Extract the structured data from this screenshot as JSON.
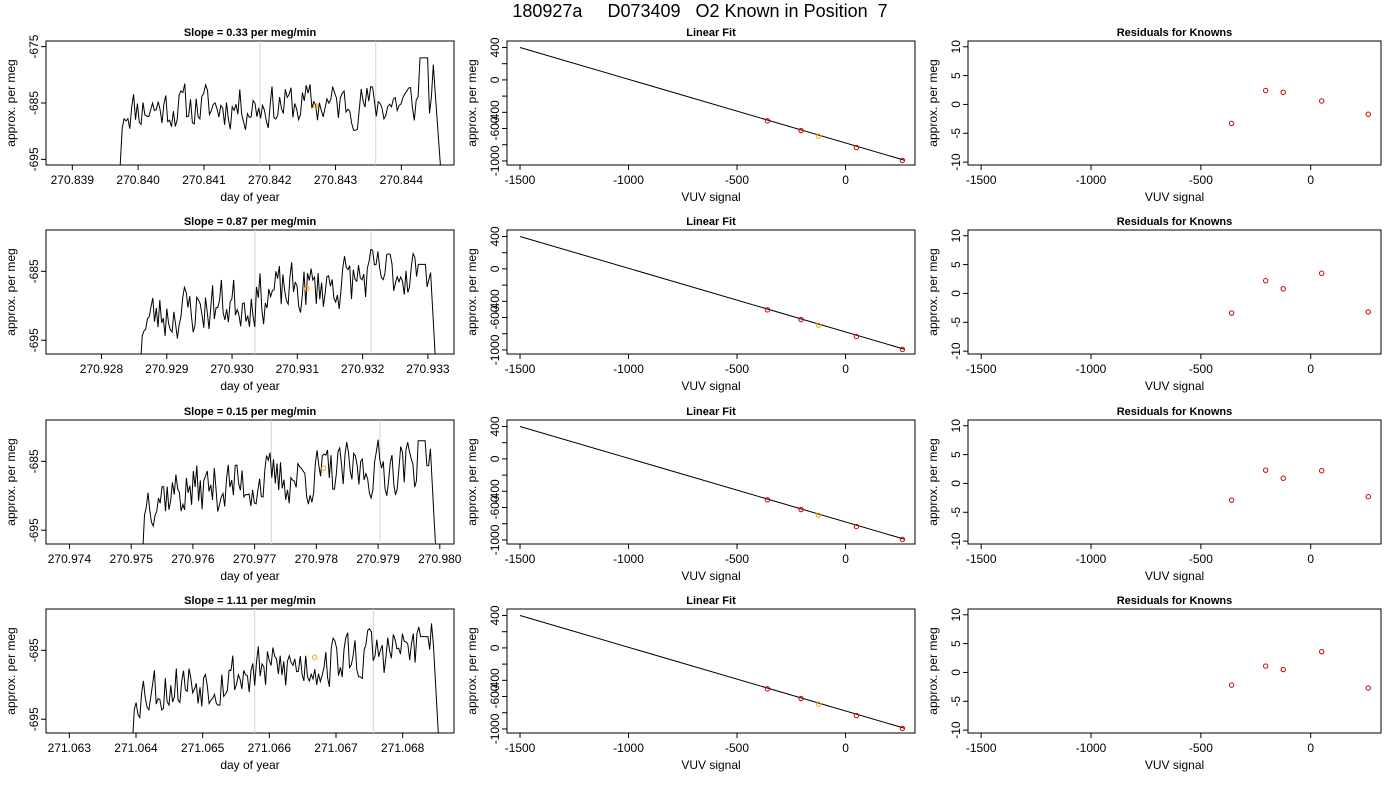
{
  "title": "180927a     D073409   O2 Known in Position  7",
  "colors": {
    "trace": "#000000",
    "vline": "#d3d3d3",
    "known_point": "#cc0000",
    "current_point": "#ffa500"
  },
  "chart_data": [
    {
      "type": "line",
      "title": "Slope =  0.33  per meg/min",
      "xlabel": "day of year",
      "ylabel": "approx. per meg",
      "xlim": [
        270.8386,
        270.8448
      ],
      "ylim": [
        -696,
        -674
      ],
      "xticks": [
        270.839,
        270.84,
        270.841,
        270.842,
        270.843,
        270.844
      ],
      "xtick_labels": [
        "270.839",
        "270.840",
        "270.841",
        "270.842",
        "270.843",
        "270.844"
      ],
      "yticks": [
        -695,
        -685,
        -675
      ],
      "ytick_labels": [
        "-695",
        "-685",
        "-675"
      ],
      "vlines": [
        270.84185,
        270.84361
      ],
      "marker": {
        "x": 270.8427,
        "y": -685.5
      },
      "trace_span": [
        270.8397,
        270.8446
      ],
      "trace_base": -686,
      "trace_trend": 1.2,
      "trace_end_peak": -677,
      "seed": 11
    },
    {
      "type": "line",
      "title": "Linear Fit",
      "xlabel": "VUV signal",
      "ylabel": "approx. per meg",
      "xlim": [
        -1560,
        320
      ],
      "ylim": [
        -1050,
        480
      ],
      "xticks": [
        -1500,
        -1000,
        -500,
        0
      ],
      "xtick_labels": [
        "-1500",
        "-1000",
        "-500",
        "0"
      ],
      "yticks": [
        -1000,
        -800,
        -600,
        -400,
        -200,
        0,
        200,
        400
      ],
      "ytick_labels": [
        "-1000",
        "",
        "-600",
        "-400",
        "",
        "0",
        "",
        "400"
      ],
      "line": [
        [
          -1500,
          400
        ],
        [
          270,
          -990
        ]
      ],
      "points": [
        [
          -360,
          -505
        ],
        [
          -205,
          -625
        ],
        [
          50,
          -835
        ],
        [
          262,
          -993
        ]
      ],
      "highlight": [
        [
          -125,
          -695
        ]
      ]
    },
    {
      "type": "scatter",
      "title": "Residuals for Knowns",
      "xlabel": "VUV signal",
      "ylabel": "approx. per meg",
      "xlim": [
        -1560,
        320
      ],
      "ylim": [
        -10.5,
        11
      ],
      "xticks": [
        -1500,
        -1000,
        -500,
        0
      ],
      "xtick_labels": [
        "-1500",
        "-1000",
        "-500",
        "0"
      ],
      "yticks": [
        -10,
        -5,
        0,
        5,
        10
      ],
      "ytick_labels": [
        "-10",
        "-5",
        "0",
        "5",
        "10"
      ],
      "points": [
        [
          -360,
          -3.3
        ],
        [
          -205,
          2.4
        ],
        [
          -125,
          2.1
        ],
        [
          50,
          0.6
        ],
        [
          262,
          -1.7
        ]
      ]
    },
    {
      "type": "line",
      "title": "Slope =  0.87  per meg/min",
      "xlabel": "day of year",
      "ylabel": "approx. per meg",
      "xlim": [
        270.92715,
        270.9334
      ],
      "ylim": [
        -697,
        -679
      ],
      "xticks": [
        270.928,
        270.929,
        270.93,
        270.931,
        270.932,
        270.933
      ],
      "xtick_labels": [
        "270.928",
        "270.929",
        "270.930",
        "270.931",
        "270.932",
        "270.933"
      ],
      "yticks": [
        -695,
        -685
      ],
      "ytick_labels": [
        "-695",
        "-685"
      ],
      "vlines": [
        270.93035,
        270.93213
      ],
      "marker": {
        "x": 270.93115,
        "y": -687.5
      },
      "trace_span": [
        270.92857,
        270.93315
      ],
      "trace_base": -692,
      "trace_trend": 8,
      "trace_end_peak": -684,
      "seed": 23
    },
    {
      "type": "line",
      "title": "Linear Fit",
      "xlabel": "VUV signal",
      "ylabel": "approx. per meg",
      "xlim": [
        -1560,
        320
      ],
      "ylim": [
        -1050,
        480
      ],
      "xticks": [
        -1500,
        -1000,
        -500,
        0
      ],
      "xtick_labels": [
        "-1500",
        "-1000",
        "-500",
        "0"
      ],
      "yticks": [
        -1000,
        -800,
        -600,
        -400,
        -200,
        0,
        200,
        400
      ],
      "ytick_labels": [
        "-1000",
        "",
        "-600",
        "-400",
        "",
        "0",
        "",
        "400"
      ],
      "line": [
        [
          -1500,
          400
        ],
        [
          270,
          -990
        ]
      ],
      "points": [
        [
          -360,
          -505
        ],
        [
          -205,
          -625
        ],
        [
          50,
          -835
        ],
        [
          262,
          -993
        ]
      ],
      "highlight": [
        [
          -125,
          -695
        ]
      ]
    },
    {
      "type": "scatter",
      "title": "Residuals for Knowns",
      "xlabel": "VUV signal",
      "ylabel": "approx. per meg",
      "xlim": [
        -1560,
        320
      ],
      "ylim": [
        -10.5,
        11
      ],
      "xticks": [
        -1500,
        -1000,
        -500,
        0
      ],
      "xtick_labels": [
        "-1500",
        "-1000",
        "-500",
        "0"
      ],
      "yticks": [
        -10,
        -5,
        0,
        5,
        10
      ],
      "ytick_labels": [
        "-10",
        "-5",
        "0",
        "5",
        "10"
      ],
      "points": [
        [
          -360,
          -3.4
        ],
        [
          -205,
          2.2
        ],
        [
          -125,
          0.8
        ],
        [
          50,
          3.5
        ],
        [
          262,
          -3.2
        ]
      ]
    },
    {
      "type": "line",
      "title": "Slope =  0.15  per meg/min",
      "xlabel": "day of year",
      "ylabel": "approx. per meg",
      "xlim": [
        270.97362,
        270.98023
      ],
      "ylim": [
        -697,
        -679
      ],
      "xticks": [
        270.974,
        270.975,
        270.976,
        270.977,
        270.978,
        270.979,
        270.98
      ],
      "xtick_labels": [
        "270.974",
        "270.975",
        "270.976",
        "270.977",
        "270.978",
        "270.979",
        "270.980"
      ],
      "yticks": [
        -695,
        -685
      ],
      "ytick_labels": [
        "-695",
        "-685"
      ],
      "vlines": [
        270.97727,
        270.97903
      ],
      "marker": {
        "x": 270.97812,
        "y": -686
      },
      "trace_span": [
        270.97516,
        270.97996
      ],
      "trace_base": -690,
      "trace_trend": 5,
      "trace_end_peak": -682,
      "seed": 37
    },
    {
      "type": "line",
      "title": "Linear Fit",
      "xlabel": "VUV signal",
      "ylabel": "approx. per meg",
      "xlim": [
        -1560,
        320
      ],
      "ylim": [
        -1050,
        480
      ],
      "xticks": [
        -1500,
        -1000,
        -500,
        0
      ],
      "xtick_labels": [
        "-1500",
        "-1000",
        "-500",
        "0"
      ],
      "yticks": [
        -1000,
        -800,
        -600,
        -400,
        -200,
        0,
        200,
        400
      ],
      "ytick_labels": [
        "-1000",
        "",
        "-600",
        "-400",
        "",
        "0",
        "",
        "400"
      ],
      "line": [
        [
          -1500,
          400
        ],
        [
          270,
          -990
        ]
      ],
      "points": [
        [
          -360,
          -505
        ],
        [
          -205,
          -625
        ],
        [
          50,
          -835
        ],
        [
          262,
          -993
        ]
      ],
      "highlight": [
        [
          -125,
          -695
        ]
      ]
    },
    {
      "type": "scatter",
      "title": "Residuals for Knowns",
      "xlabel": "VUV signal",
      "ylabel": "approx. per meg",
      "xlim": [
        -1560,
        320
      ],
      "ylim": [
        -10.5,
        11
      ],
      "xticks": [
        -1500,
        -1000,
        -500,
        0
      ],
      "xtick_labels": [
        "-1500",
        "-1000",
        "-500",
        "0"
      ],
      "yticks": [
        -10,
        -5,
        0,
        5,
        10
      ],
      "ytick_labels": [
        "-10",
        "-5",
        "0",
        "5",
        "10"
      ],
      "points": [
        [
          -360,
          -2.9
        ],
        [
          -205,
          2.3
        ],
        [
          -125,
          0.9
        ],
        [
          50,
          2.2
        ],
        [
          262,
          -2.3
        ]
      ]
    },
    {
      "type": "line",
      "title": "Slope =  1.11  per meg/min",
      "xlabel": "day of year",
      "ylabel": "approx. per meg",
      "xlim": [
        271.06265,
        271.06877
      ],
      "ylim": [
        -697,
        -679
      ],
      "xticks": [
        271.063,
        271.064,
        271.065,
        271.066,
        271.067,
        271.068
      ],
      "xtick_labels": [
        "271.063",
        "271.064",
        "271.065",
        "271.066",
        "271.067",
        "271.068"
      ],
      "yticks": [
        -695,
        -685
      ],
      "ytick_labels": [
        "-695",
        "-685"
      ],
      "vlines": [
        271.06578,
        271.06756
      ],
      "marker": {
        "x": 271.06668,
        "y": -686
      },
      "trace_span": [
        271.06392,
        271.06857
      ],
      "trace_base": -691,
      "trace_trend": 7,
      "trace_end_peak": -683,
      "seed": 53
    },
    {
      "type": "line",
      "title": "Linear Fit",
      "xlabel": "VUV signal",
      "ylabel": "approx. per meg",
      "xlim": [
        -1560,
        320
      ],
      "ylim": [
        -1050,
        480
      ],
      "xticks": [
        -1500,
        -1000,
        -500,
        0
      ],
      "xtick_labels": [
        "-1500",
        "-1000",
        "-500",
        "0"
      ],
      "yticks": [
        -1000,
        -800,
        -600,
        -400,
        -200,
        0,
        200,
        400
      ],
      "ytick_labels": [
        "-1000",
        "",
        "-600",
        "-400",
        "",
        "0",
        "",
        "400"
      ],
      "line": [
        [
          -1500,
          400
        ],
        [
          270,
          -990
        ]
      ],
      "points": [
        [
          -360,
          -505
        ],
        [
          -205,
          -625
        ],
        [
          50,
          -835
        ],
        [
          262,
          -993
        ]
      ],
      "highlight": [
        [
          -125,
          -695
        ]
      ]
    },
    {
      "type": "scatter",
      "title": "Residuals for Knowns",
      "xlabel": "VUV signal",
      "ylabel": "approx. per meg",
      "xlim": [
        -1560,
        320
      ],
      "ylim": [
        -10.5,
        11
      ],
      "xticks": [
        -1500,
        -1000,
        -500,
        0
      ],
      "xtick_labels": [
        "-1500",
        "-1000",
        "-500",
        "0"
      ],
      "yticks": [
        -10,
        -5,
        0,
        5,
        10
      ],
      "ytick_labels": [
        "-10",
        "-5",
        "0",
        "5",
        "10"
      ],
      "points": [
        [
          -360,
          -2.2
        ],
        [
          -205,
          1.1
        ],
        [
          -125,
          0.5
        ],
        [
          50,
          3.6
        ],
        [
          262,
          -2.7
        ]
      ]
    }
  ]
}
